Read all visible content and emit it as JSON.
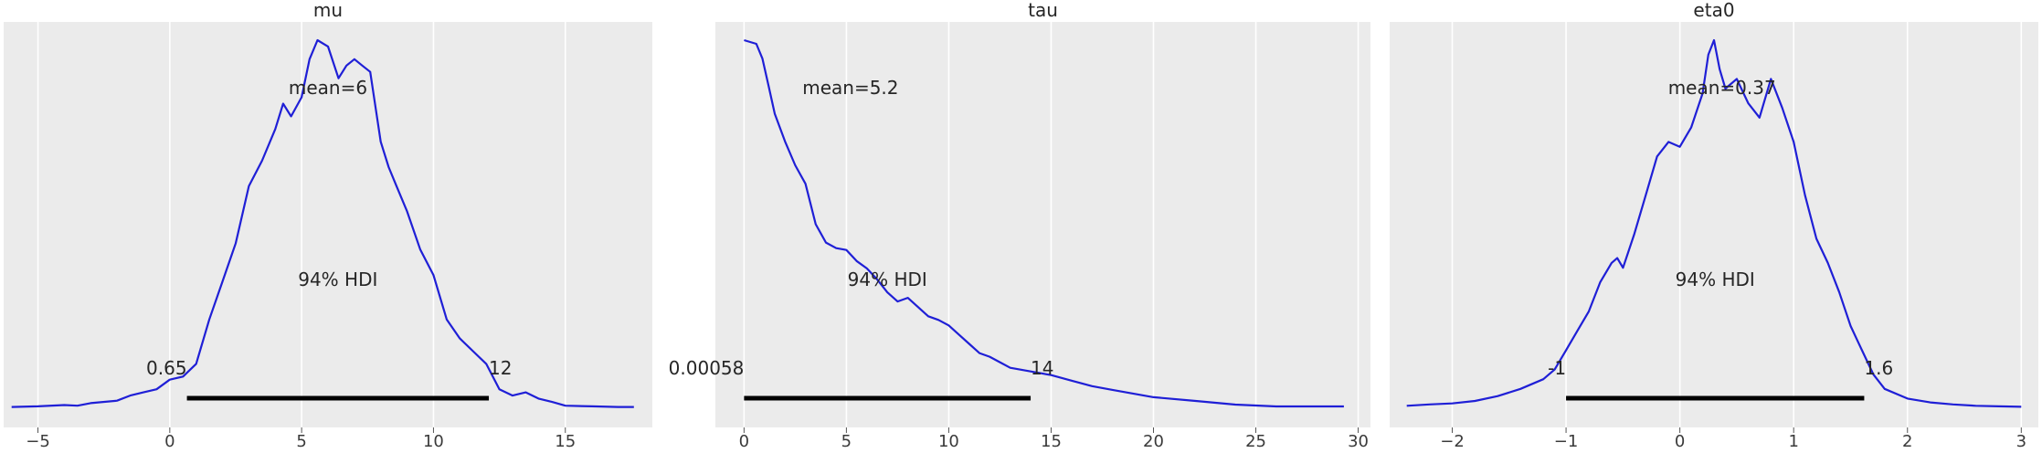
{
  "chart_data": [
    {
      "type": "line",
      "title": "mu",
      "xlim": [
        -6.3,
        18.3
      ],
      "xticks": [
        -5,
        0,
        5,
        10,
        15
      ],
      "xtick_labels": [
        "−5",
        "0",
        "5",
        "10",
        "15"
      ],
      "grid": true,
      "series": [
        {
          "x": [
            -6.0,
            -5.0,
            -4.0,
            -3.5,
            -3.0,
            -2.0,
            -1.5,
            -1.0,
            -0.5,
            0.0,
            0.5,
            1.0,
            1.5,
            2.0,
            2.5,
            3.0,
            3.5,
            4.0,
            4.3,
            4.6,
            5.0,
            5.3,
            5.6,
            6.0,
            6.4,
            6.7,
            7.0,
            7.3,
            7.6,
            8.0,
            8.3,
            8.6,
            9.0,
            9.5,
            10.0,
            10.5,
            11.0,
            11.5,
            12.0,
            12.5,
            13.0,
            13.5,
            14.0,
            14.5,
            15.0,
            16.0,
            17.0,
            17.6
          ],
          "y": [
            0.002,
            0.003,
            0.005,
            0.004,
            0.008,
            0.012,
            0.02,
            0.025,
            0.03,
            0.045,
            0.05,
            0.07,
            0.14,
            0.2,
            0.26,
            0.35,
            0.39,
            0.44,
            0.48,
            0.46,
            0.49,
            0.55,
            0.58,
            0.57,
            0.52,
            0.54,
            0.55,
            0.54,
            0.53,
            0.42,
            0.38,
            0.35,
            0.31,
            0.25,
            0.21,
            0.14,
            0.11,
            0.09,
            0.07,
            0.03,
            0.02,
            0.025,
            0.015,
            0.01,
            0.004,
            0.003,
            0.002,
            0.002
          ]
        }
      ],
      "annotations": {
        "mean": "mean=6",
        "hdi_label": "94% HDI",
        "hdi_low": "0.65",
        "hdi_high": "12"
      },
      "hdi": [
        0.65,
        12.1
      ]
    },
    {
      "type": "line",
      "title": "tau",
      "xlim": [
        -1.4,
        30.6
      ],
      "xticks": [
        0,
        5,
        10,
        15,
        20,
        25,
        30
      ],
      "xtick_labels": [
        "0",
        "5",
        "10",
        "15",
        "20",
        "25",
        "30"
      ],
      "grid": true,
      "series": [
        {
          "x": [
            0.0,
            0.3,
            0.6,
            0.9,
            1.2,
            1.5,
            2.0,
            2.5,
            3.0,
            3.5,
            4.0,
            4.5,
            5.0,
            5.5,
            6.0,
            6.5,
            7.0,
            7.5,
            8.0,
            8.5,
            9.0,
            9.5,
            10.0,
            10.5,
            11.0,
            11.5,
            12.0,
            12.5,
            13.0,
            14.0,
            15.0,
            16.0,
            17.0,
            18.0,
            19.0,
            20.0,
            22.0,
            24.0,
            26.0,
            28.0,
            29.3
          ],
          "y": [
            0.2,
            0.199,
            0.198,
            0.19,
            0.175,
            0.16,
            0.145,
            0.132,
            0.122,
            0.1,
            0.09,
            0.087,
            0.086,
            0.08,
            0.076,
            0.07,
            0.063,
            0.058,
            0.06,
            0.055,
            0.05,
            0.048,
            0.045,
            0.04,
            0.035,
            0.03,
            0.028,
            0.025,
            0.022,
            0.02,
            0.018,
            0.015,
            0.012,
            0.01,
            0.008,
            0.006,
            0.004,
            0.002,
            0.001,
            0.001,
            0.001
          ]
        }
      ],
      "annotations": {
        "mean": "mean=5.2",
        "hdi_label": "94% HDI",
        "hdi_low": "0.00058",
        "hdi_high": "14"
      },
      "hdi": [
        0.00058,
        14.0
      ]
    },
    {
      "type": "line",
      "title": "eta0",
      "xlim": [
        -2.55,
        3.15
      ],
      "xticks": [
        -2,
        -1,
        0,
        1,
        2,
        3
      ],
      "xtick_labels": [
        "−2",
        "−1",
        "0",
        "1",
        "2",
        "3"
      ],
      "grid": true,
      "series": [
        {
          "x": [
            -2.4,
            -2.2,
            -2.0,
            -1.8,
            -1.6,
            -1.4,
            -1.2,
            -1.1,
            -1.0,
            -0.9,
            -0.8,
            -0.7,
            -0.6,
            -0.55,
            -0.5,
            -0.4,
            -0.3,
            -0.2,
            -0.1,
            0.0,
            0.1,
            0.2,
            0.25,
            0.3,
            0.35,
            0.4,
            0.5,
            0.6,
            0.7,
            0.8,
            0.9,
            1.0,
            1.1,
            1.2,
            1.3,
            1.4,
            1.5,
            1.6,
            1.7,
            1.8,
            2.0,
            2.2,
            2.4,
            2.6,
            2.8,
            3.0
          ],
          "y": [
            0.005,
            0.008,
            0.01,
            0.015,
            0.025,
            0.04,
            0.06,
            0.08,
            0.12,
            0.16,
            0.2,
            0.26,
            0.3,
            0.31,
            0.29,
            0.36,
            0.44,
            0.52,
            0.55,
            0.54,
            0.58,
            0.65,
            0.73,
            0.76,
            0.7,
            0.66,
            0.68,
            0.63,
            0.6,
            0.68,
            0.62,
            0.55,
            0.44,
            0.35,
            0.3,
            0.24,
            0.17,
            0.12,
            0.07,
            0.04,
            0.02,
            0.012,
            0.008,
            0.005,
            0.004,
            0.003
          ]
        }
      ],
      "annotations": {
        "mean": "mean=0.37",
        "hdi_label": "94% HDI",
        "hdi_low": "-1",
        "hdi_high": "1.6"
      },
      "hdi": [
        -1.0,
        1.62
      ]
    }
  ]
}
